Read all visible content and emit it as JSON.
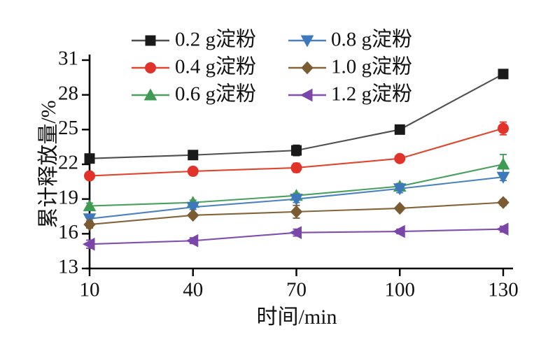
{
  "page": {
    "background": "#ffffff"
  },
  "chart_data": {
    "type": "line",
    "title": "",
    "xlabel": "时间/min",
    "ylabel": "累计释放量/%",
    "x": [
      10,
      40,
      70,
      100,
      130
    ],
    "xlim": [
      10,
      130
    ],
    "ylim": [
      13,
      31
    ],
    "xticks": [
      "10",
      "40",
      "70",
      "100",
      "130"
    ],
    "yticks": [
      "13",
      "16",
      "19",
      "22",
      "25",
      "28",
      "31"
    ],
    "grid": false,
    "legend_position": "top-center",
    "legend_columns": 2,
    "axis_color": "#000000",
    "error_bars": true,
    "series": [
      {
        "name": "0.2 g淀粉",
        "marker": "square",
        "color": "#1a1a1a",
        "line_color": "#4f4f4f",
        "values": [
          22.5,
          22.8,
          23.2,
          25.0,
          29.8
        ],
        "errors": [
          0.35,
          0.3,
          0.45,
          0.25,
          0.2
        ]
      },
      {
        "name": "0.4 g淀粉",
        "marker": "circle",
        "color": "#e2332a",
        "line_color": "#e0462c",
        "values": [
          21.0,
          21.4,
          21.7,
          22.5,
          25.1
        ],
        "errors": [
          0.3,
          0.35,
          0.4,
          0.3,
          0.55
        ]
      },
      {
        "name": "0.6 g淀粉",
        "marker": "triangle-up",
        "color": "#3f9b54",
        "line_color": "#4aa05e",
        "values": [
          18.4,
          18.7,
          19.3,
          20.1,
          22.0
        ],
        "errors": [
          0.25,
          0.2,
          0.2,
          0.25,
          0.85
        ]
      },
      {
        "name": "0.8 g淀粉",
        "marker": "triangle-down",
        "color": "#3c78bb",
        "line_color": "#4a82c0",
        "values": [
          17.3,
          18.3,
          19.0,
          19.9,
          20.9
        ],
        "errors": [
          0.3,
          0.2,
          0.3,
          0.35,
          0.3
        ]
      },
      {
        "name": "1.0 g淀粉",
        "marker": "diamond",
        "color": "#7b5b31",
        "line_color": "#84653a",
        "values": [
          16.8,
          17.6,
          17.9,
          18.2,
          18.7
        ],
        "errors": [
          0.3,
          0.2,
          0.55,
          0.15,
          0.25
        ]
      },
      {
        "name": "1.2 g淀粉",
        "marker": "triangle-left",
        "color": "#7a46a9",
        "line_color": "#8050b0",
        "values": [
          15.1,
          15.4,
          16.1,
          16.2,
          16.4
        ],
        "errors": [
          0.35,
          0.25,
          0.3,
          0.2,
          0.25
        ]
      }
    ]
  }
}
